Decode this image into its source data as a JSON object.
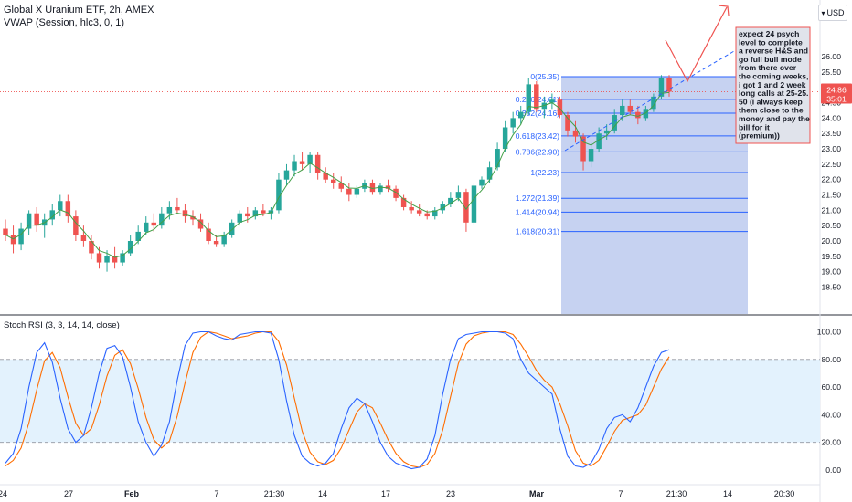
{
  "header": {
    "title": "Global X Uranium ETF, 2h, AMEX",
    "indicator": "VWAP (Session, hlc3, 0, 1)",
    "currency": "USD"
  },
  "price_tag": {
    "value": "24.86",
    "countdown": "35:01"
  },
  "colors": {
    "up": "#26a69a",
    "down": "#ef5350",
    "vwap": "#43a047",
    "fib_line": "#2962ff",
    "fib_fill": "#5b7fd6",
    "rsi_k": "#2962ff",
    "rsi_d": "#ff6d00",
    "rsi_band": "#e3f2fd",
    "annotation_bg": "#e0e3eb",
    "annotation_border": "#ef5350"
  },
  "annotation": {
    "lines": [
      "expect 24 psych",
      "level to complete",
      "a reverse H&S and",
      "go full bull mode",
      "from there over",
      "the coming weeks,",
      "i got 1 and 2 week",
      "long calls at 25-25.",
      "50 (i always keep",
      "them close to the",
      "money and pay the",
      "bill for it",
      "(premium))"
    ]
  },
  "chart_data": [
    {
      "type": "candlestick",
      "title": "Global X Uranium ETF, 2h, AMEX",
      "ylim": [
        17.8,
        26.2
      ],
      "y_ticks": [
        "18.50",
        "19.00",
        "19.50",
        "20.00",
        "20.50",
        "21.00",
        "21.50",
        "22.00",
        "22.50",
        "23.00",
        "23.50",
        "24.00",
        "24.50",
        "25.00",
        "25.50",
        "26.00"
      ],
      "x_ticks": [
        "24",
        "27",
        "Feb",
        "7",
        "21:30",
        "14",
        "17",
        "23",
        "Mar",
        "7",
        "21:30",
        "14",
        "20:30"
      ],
      "fib_levels": [
        {
          "ratio": "0",
          "price": 25.35,
          "label": "0(25.35)"
        },
        {
          "ratio": "0.236",
          "price": 24.61,
          "label": "0.236(24.61)"
        },
        {
          "ratio": "0.382",
          "price": 24.16,
          "label": "0.382(24.16)"
        },
        {
          "ratio": "0.618",
          "price": 23.42,
          "label": "0.618(23.42)"
        },
        {
          "ratio": "0.786",
          "price": 22.9,
          "label": "0.786(22.90)"
        },
        {
          "ratio": "1",
          "price": 22.23,
          "label": "1(22.23)"
        },
        {
          "ratio": "1.272",
          "price": 21.39,
          "label": "1.272(21.39)"
        },
        {
          "ratio": "1.414",
          "price": 20.94,
          "label": "1.414(20.94)"
        },
        {
          "ratio": "1.618",
          "price": 20.31,
          "label": "1.618(20.31)"
        }
      ],
      "current_price": 24.86,
      "candles": [
        [
          20.4,
          20.7,
          20.0,
          20.2
        ],
        [
          20.2,
          20.5,
          19.6,
          19.9
        ],
        [
          19.9,
          20.6,
          19.7,
          20.4
        ],
        [
          20.4,
          21.0,
          20.2,
          20.9
        ],
        [
          20.9,
          21.1,
          20.3,
          20.5
        ],
        [
          20.5,
          20.9,
          20.1,
          20.7
        ],
        [
          20.7,
          21.2,
          20.5,
          21.0
        ],
        [
          21.0,
          21.5,
          20.8,
          21.3
        ],
        [
          21.3,
          21.5,
          20.6,
          20.8
        ],
        [
          20.8,
          21.0,
          20.0,
          20.2
        ],
        [
          20.2,
          20.5,
          19.8,
          20.0
        ],
        [
          20.0,
          20.2,
          19.4,
          19.6
        ],
        [
          19.6,
          19.8,
          19.1,
          19.3
        ],
        [
          19.3,
          19.7,
          19.0,
          19.5
        ],
        [
          19.5,
          19.8,
          19.1,
          19.3
        ],
        [
          19.3,
          19.7,
          19.2,
          19.6
        ],
        [
          19.6,
          20.2,
          19.5,
          20.0
        ],
        [
          20.0,
          20.5,
          19.9,
          20.3
        ],
        [
          20.3,
          20.8,
          20.2,
          20.6
        ],
        [
          20.6,
          20.9,
          20.3,
          20.5
        ],
        [
          20.5,
          21.1,
          20.4,
          20.9
        ],
        [
          20.9,
          21.3,
          20.7,
          21.1
        ],
        [
          21.1,
          21.4,
          20.9,
          21.0
        ],
        [
          21.0,
          21.2,
          20.6,
          20.8
        ],
        [
          20.8,
          21.0,
          20.5,
          20.7
        ],
        [
          20.7,
          20.9,
          20.3,
          20.4
        ],
        [
          20.4,
          20.6,
          19.9,
          20.0
        ],
        [
          20.0,
          20.2,
          19.8,
          19.9
        ],
        [
          19.9,
          20.3,
          19.8,
          20.2
        ],
        [
          20.2,
          20.7,
          20.1,
          20.6
        ],
        [
          20.6,
          21.0,
          20.5,
          20.9
        ],
        [
          20.9,
          21.1,
          20.6,
          20.8
        ],
        [
          20.8,
          21.1,
          20.7,
          21.0
        ],
        [
          21.0,
          21.2,
          20.8,
          20.9
        ],
        [
          20.9,
          21.1,
          20.7,
          21.0
        ],
        [
          21.0,
          22.2,
          20.9,
          22.0
        ],
        [
          22.0,
          22.5,
          21.8,
          22.3
        ],
        [
          22.3,
          22.8,
          22.1,
          22.6
        ],
        [
          22.6,
          22.9,
          22.3,
          22.5
        ],
        [
          22.5,
          22.9,
          22.2,
          22.8
        ],
        [
          22.8,
          22.9,
          22.0,
          22.2
        ],
        [
          22.2,
          22.4,
          21.9,
          22.0
        ],
        [
          22.0,
          22.2,
          21.7,
          21.9
        ],
        [
          21.9,
          22.1,
          21.6,
          21.7
        ],
        [
          21.7,
          21.9,
          21.3,
          21.5
        ],
        [
          21.5,
          21.8,
          21.4,
          21.7
        ],
        [
          21.7,
          22.0,
          21.6,
          21.9
        ],
        [
          21.9,
          22.0,
          21.5,
          21.6
        ],
        [
          21.6,
          21.9,
          21.5,
          21.8
        ],
        [
          21.8,
          22.0,
          21.6,
          21.7
        ],
        [
          21.7,
          21.8,
          21.3,
          21.4
        ],
        [
          21.4,
          21.5,
          21.0,
          21.1
        ],
        [
          21.1,
          21.3,
          20.9,
          21.0
        ],
        [
          21.0,
          21.2,
          20.8,
          20.9
        ],
        [
          20.9,
          21.0,
          20.7,
          20.8
        ],
        [
          20.8,
          21.1,
          20.7,
          21.0
        ],
        [
          21.0,
          21.3,
          20.9,
          21.2
        ],
        [
          21.2,
          21.6,
          21.1,
          21.4
        ],
        [
          21.4,
          21.8,
          21.3,
          21.6
        ],
        [
          21.6,
          21.7,
          20.3,
          20.6
        ],
        [
          20.6,
          21.9,
          20.5,
          21.8
        ],
        [
          21.8,
          22.1,
          21.7,
          22.0
        ],
        [
          22.0,
          22.6,
          21.9,
          22.4
        ],
        [
          22.4,
          23.2,
          22.3,
          23.0
        ],
        [
          23.0,
          23.9,
          22.9,
          23.7
        ],
        [
          23.7,
          24.2,
          23.5,
          24.0
        ],
        [
          24.0,
          24.4,
          23.8,
          24.2
        ],
        [
          24.2,
          25.3,
          24.1,
          25.1
        ],
        [
          25.1,
          25.2,
          24.2,
          24.3
        ],
        [
          24.3,
          24.7,
          24.0,
          24.5
        ],
        [
          24.5,
          24.8,
          24.3,
          24.6
        ],
        [
          24.6,
          24.7,
          24.0,
          24.1
        ],
        [
          24.1,
          24.2,
          23.4,
          23.6
        ],
        [
          23.6,
          23.9,
          23.2,
          23.4
        ],
        [
          23.4,
          23.5,
          22.3,
          22.6
        ],
        [
          22.6,
          23.2,
          22.4,
          23.0
        ],
        [
          23.0,
          23.7,
          22.9,
          23.5
        ],
        [
          23.5,
          23.8,
          23.3,
          23.6
        ],
        [
          23.6,
          24.3,
          23.5,
          24.1
        ],
        [
          24.1,
          24.6,
          23.9,
          24.4
        ],
        [
          24.4,
          24.6,
          24.1,
          24.2
        ],
        [
          24.2,
          24.4,
          23.8,
          24.0
        ],
        [
          24.0,
          24.4,
          23.9,
          24.3
        ],
        [
          24.3,
          24.8,
          24.2,
          24.7
        ],
        [
          24.7,
          25.4,
          24.6,
          25.3
        ],
        [
          25.3,
          25.4,
          24.7,
          24.86
        ]
      ]
    },
    {
      "type": "line",
      "title": "Stoch RSI (3, 3, 14, 14, close)",
      "ylim": [
        -5,
        105
      ],
      "y_ticks": [
        "0.00",
        "20.00",
        "40.00",
        "60.00",
        "80.00",
        "100.00"
      ],
      "bands": [
        20,
        80
      ],
      "series": [
        {
          "name": "K",
          "values": [
            5,
            12,
            30,
            60,
            85,
            92,
            78,
            52,
            30,
            20,
            25,
            45,
            70,
            88,
            90,
            82,
            60,
            35,
            20,
            10,
            18,
            35,
            65,
            90,
            99,
            100,
            100,
            97,
            95,
            94,
            98,
            99,
            100,
            100,
            99,
            80,
            50,
            25,
            10,
            5,
            3,
            5,
            12,
            30,
            45,
            52,
            48,
            35,
            20,
            10,
            5,
            3,
            1,
            2,
            8,
            25,
            55,
            80,
            95,
            98,
            99,
            100,
            100,
            100,
            99,
            95,
            80,
            70,
            65,
            60,
            55,
            30,
            10,
            3,
            2,
            5,
            15,
            30,
            38,
            40,
            35,
            45,
            60,
            75,
            85,
            87
          ]
        },
        {
          "name": "D",
          "values": [
            3,
            7,
            16,
            34,
            58,
            79,
            85,
            74,
            53,
            34,
            25,
            30,
            47,
            68,
            83,
            87,
            77,
            59,
            38,
            22,
            16,
            21,
            39,
            63,
            85,
            96,
            100,
            99,
            97,
            95,
            96,
            97,
            99,
            100,
            100,
            93,
            76,
            52,
            28,
            13,
            6,
            4,
            7,
            16,
            29,
            42,
            48,
            45,
            34,
            22,
            12,
            6,
            3,
            2,
            4,
            12,
            29,
            53,
            77,
            91,
            97,
            99,
            100,
            100,
            100,
            98,
            91,
            82,
            72,
            65,
            60,
            48,
            32,
            14,
            5,
            3,
            7,
            17,
            28,
            36,
            38,
            40,
            47,
            60,
            73,
            82
          ]
        }
      ]
    }
  ]
}
